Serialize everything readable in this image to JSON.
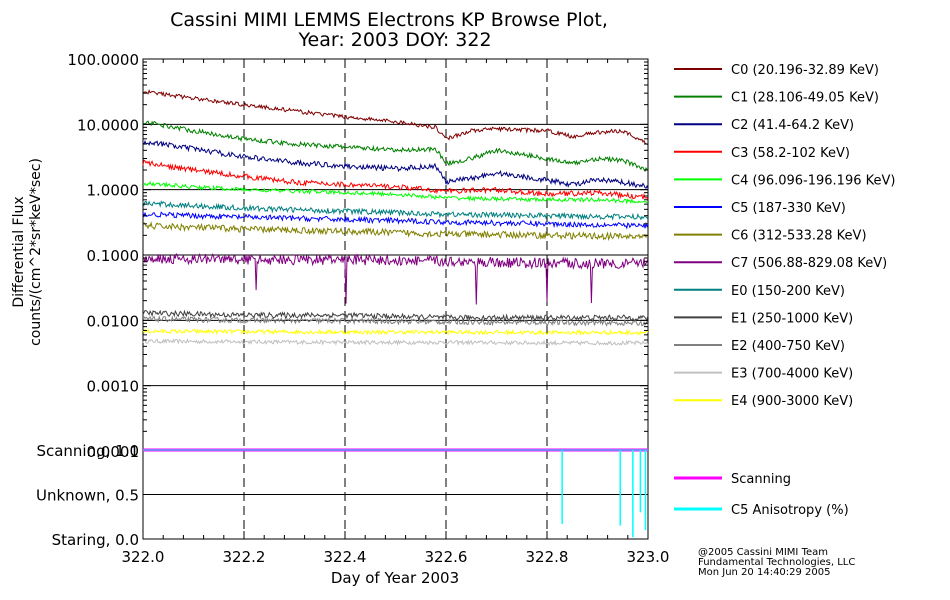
{
  "chart_data": {
    "type": "line",
    "title": "Cassini MIMI LEMMS Electrons KP Browse Plot,",
    "subtitle": "Year: 2003 DOY: 322",
    "xlabel": "Day of Year 2003",
    "ylabel_line1": "Differential Flux",
    "ylabel_line2": "counts/(cm^2*sr*keV*sec)",
    "x_scale": "linear",
    "y_scale": "log",
    "xlim": [
      322.0,
      323.0
    ],
    "ylim": [
      0.0001,
      100.0
    ],
    "x_ticks": [
      322.0,
      322.2,
      322.4,
      322.6,
      322.8,
      323.0
    ],
    "x_tick_labels": [
      "322.0",
      "322.2",
      "322.4",
      "322.6",
      "322.8",
      "323.0"
    ],
    "y_ticks": [
      0.0001,
      0.001,
      0.01,
      0.1,
      1,
      10,
      100
    ],
    "y_tick_labels": [
      "0.0001",
      "0.0010",
      "0.0100",
      "0.1000",
      "1.0000",
      "10.0000",
      "100.0000"
    ],
    "grid": "horizontal solid at decades, vertical dashed at 322.2, 322.4, 322.6, 322.8",
    "legend_position": "right",
    "series": [
      {
        "name": "C0 (20.196-32.89 KeV)",
        "color": "#800000",
        "x": [
          322.0,
          322.1,
          322.2,
          322.3,
          322.4,
          322.5,
          322.58,
          322.6,
          322.65,
          322.7,
          322.8,
          322.85,
          322.9,
          322.95,
          323.0
        ],
        "values": [
          32,
          25,
          20,
          16,
          13,
          11,
          9,
          6,
          8,
          8.5,
          8,
          6.5,
          7.5,
          8,
          5
        ]
      },
      {
        "name": "C1 (28.106-49.05 KeV)",
        "color": "#008000",
        "x": [
          322.0,
          322.1,
          322.2,
          322.3,
          322.4,
          322.5,
          322.58,
          322.6,
          322.65,
          322.7,
          322.8,
          322.85,
          322.9,
          322.95,
          323.0
        ],
        "values": [
          11,
          8,
          6,
          5,
          4.5,
          4,
          4.2,
          2.5,
          3,
          4,
          3,
          2.5,
          3,
          2.8,
          2
        ]
      },
      {
        "name": "C2 (41.4-64.2 KeV)",
        "color": "#000080",
        "x": [
          322.0,
          322.1,
          322.2,
          322.3,
          322.4,
          322.5,
          322.58,
          322.6,
          322.65,
          322.7,
          322.8,
          322.85,
          322.9,
          322.95,
          323.0
        ],
        "values": [
          5.5,
          4.2,
          3.2,
          2.6,
          2.3,
          2.1,
          2.3,
          1.3,
          1.5,
          1.8,
          1.4,
          1.2,
          1.4,
          1.3,
          1.1
        ]
      },
      {
        "name": "C3 (58.2-102 KeV)",
        "color": "#ff0000",
        "x": [
          322.0,
          322.1,
          322.2,
          322.3,
          322.4,
          322.5,
          322.6,
          322.7,
          322.8,
          322.9,
          323.0
        ],
        "values": [
          2.6,
          2.0,
          1.6,
          1.3,
          1.2,
          1.1,
          0.95,
          1.0,
          0.85,
          0.9,
          0.75
        ]
      },
      {
        "name": "C4 (96.096-196.196 KeV)",
        "color": "#00ff00",
        "x": [
          322.0,
          322.1,
          322.2,
          322.3,
          322.4,
          322.5,
          322.6,
          322.7,
          322.8,
          322.9,
          323.0
        ],
        "values": [
          1.25,
          1.1,
          1.0,
          0.95,
          0.9,
          0.85,
          0.75,
          0.72,
          0.7,
          0.7,
          0.65
        ]
      },
      {
        "name": "C5 (187-330 KeV)",
        "color": "#0000ff",
        "x": [
          322.0,
          322.2,
          322.4,
          322.6,
          322.8,
          323.0
        ],
        "values": [
          0.42,
          0.38,
          0.35,
          0.32,
          0.3,
          0.28
        ]
      },
      {
        "name": "C6 (312-533.28 KeV)",
        "color": "#808000",
        "x": [
          322.0,
          322.2,
          322.4,
          322.6,
          322.8,
          323.0
        ],
        "values": [
          0.28,
          0.25,
          0.23,
          0.21,
          0.2,
          0.19
        ]
      },
      {
        "name": "C7 (506.88-829.08 KeV)",
        "color": "#800080",
        "x": [
          322.0,
          322.2,
          322.4,
          322.6,
          322.8,
          323.0
        ],
        "values": [
          0.09,
          0.085,
          0.085,
          0.08,
          0.075,
          0.075
        ]
      },
      {
        "name": "E0 (150-200 KeV)",
        "color": "#008080",
        "x": [
          322.0,
          322.2,
          322.4,
          322.6,
          322.8,
          323.0
        ],
        "values": [
          0.62,
          0.52,
          0.47,
          0.42,
          0.4,
          0.38
        ]
      },
      {
        "name": "E1 (250-1000 KeV)",
        "color": "#404040",
        "x": [
          322.0,
          322.2,
          322.4,
          322.6,
          322.8,
          323.0
        ],
        "values": [
          0.013,
          0.012,
          0.012,
          0.011,
          0.011,
          0.011
        ]
      },
      {
        "name": "E2 (400-750 KeV)",
        "color": "#808080",
        "x": [
          322.0,
          322.2,
          322.4,
          322.6,
          322.8,
          323.0
        ],
        "values": [
          0.0105,
          0.01,
          0.0098,
          0.0095,
          0.0093,
          0.009
        ]
      },
      {
        "name": "E3 (700-4000 KeV)",
        "color": "#c0c0c0",
        "x": [
          322.0,
          322.2,
          322.4,
          322.6,
          322.8,
          323.0
        ],
        "values": [
          0.0048,
          0.0047,
          0.0046,
          0.0046,
          0.0045,
          0.0045
        ]
      },
      {
        "name": "E4 (900-3000 KeV)",
        "color": "#ffff00",
        "x": [
          322.0,
          322.2,
          322.4,
          322.6,
          322.8,
          323.0
        ],
        "values": [
          0.0068,
          0.0067,
          0.0066,
          0.0066,
          0.0065,
          0.0065
        ]
      }
    ],
    "status_panel": {
      "ylim": [
        0.0,
        1.0
      ],
      "y_ticks": [
        1.0,
        0.5,
        0.0
      ],
      "y_tick_labels": [
        "Scanning, 1.0",
        "Unknown, 0.5",
        "Staring, 0.0"
      ],
      "series": [
        {
          "name": "Scanning",
          "color": "#ff00ff",
          "x": [
            322.0,
            323.0
          ],
          "values": [
            1.0,
            1.0
          ]
        },
        {
          "name": "C5 Anisotropy (%)",
          "color": "#00ffff",
          "spikes": [
            {
              "x": 322.83,
              "min": 0.17
            },
            {
              "x": 322.945,
              "min": 0.15
            },
            {
              "x": 322.97,
              "min": 0.02
            },
            {
              "x": 322.985,
              "min": 0.3
            },
            {
              "x": 322.995,
              "min": 0.1
            }
          ]
        }
      ]
    },
    "credit_lines": [
      "@2005 Cassini MIMI Team",
      "Fundamental Technologies, LLC",
      "Mon Jun 20 14:40:29 2005"
    ]
  }
}
